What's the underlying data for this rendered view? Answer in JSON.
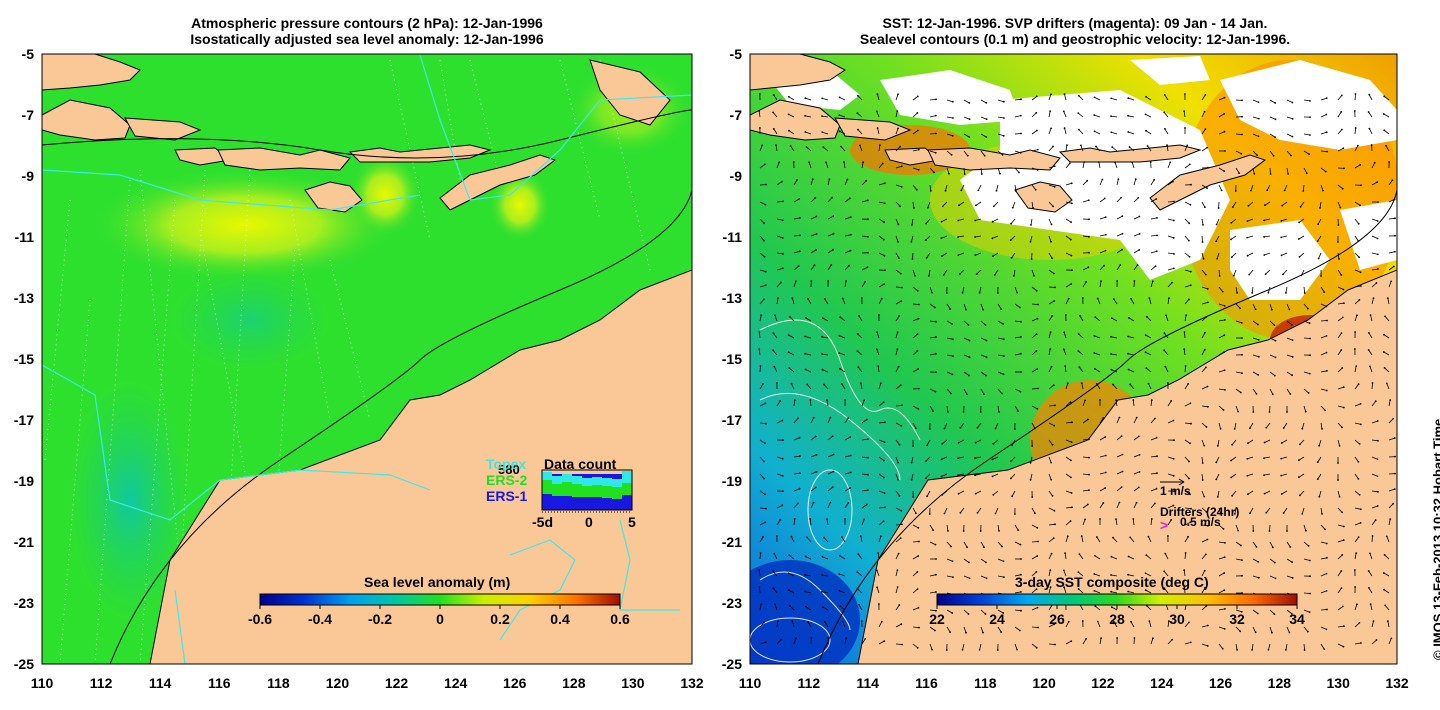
{
  "left_panel": {
    "title_line1": "Atmospheric pressure contours (2 hPa): 12-Jan-1996",
    "title_line2": "Isostatically adjusted sea level anomaly: 12-Jan-1996",
    "colorbar_label": "Sea level anomaly (m)",
    "colorbar_ticks": [
      "-0.6",
      "-0.4",
      "-0.2",
      "0",
      "0.2",
      "0.4",
      "0.6"
    ],
    "inset": {
      "title": "Data count",
      "count_label": "580",
      "legend": [
        {
          "label": "Topex",
          "color": "#30e8e8"
        },
        {
          "label": "ERS-2",
          "color": "#20e020"
        },
        {
          "label": "ERS-1",
          "color": "#1818e0"
        }
      ],
      "x_ticks": [
        "-5d",
        "0",
        "5"
      ]
    }
  },
  "right_panel": {
    "title_line1": "SST: 12-Jan-1996. SVP drifters (magenta): 09 Jan - 14 Jan.",
    "title_line2": "Sealevel contours (0.1 m) and geostrophic velocity: 12-Jan-1996.",
    "colorbar_label": "3-day SST composite (deg C)",
    "colorbar_ticks": [
      "22",
      "24",
      "26",
      "28",
      "30",
      "32",
      "34"
    ],
    "vector_scale_label": "1 m/s",
    "drifters_label": "Drifters (24hr)",
    "drifter_speed_label": "0.5 m/s"
  },
  "axes": {
    "lon_ticks": [
      "110",
      "112",
      "114",
      "116",
      "118",
      "120",
      "122",
      "124",
      "126",
      "128",
      "130",
      "132"
    ],
    "lat_ticks": [
      "-5",
      "-7",
      "-9",
      "-11",
      "-13",
      "-15",
      "-17",
      "-19",
      "-21",
      "-23",
      "-25"
    ]
  },
  "credit": "© IMOS 13-Feb-2013 10:32 Hobart Time",
  "colors": {
    "land": "#f9c896",
    "ocean_green": "#2ee02e",
    "sst_cloud": "#ffffff"
  }
}
